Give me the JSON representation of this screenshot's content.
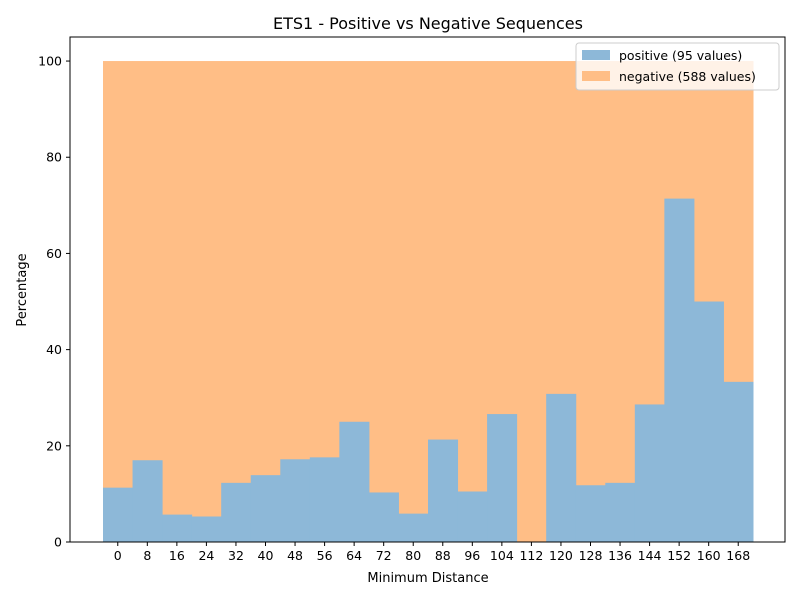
{
  "chart_data": {
    "type": "bar",
    "title": "ETS1 - Positive vs Negative Sequences",
    "xlabel": "Minimum Distance",
    "ylabel": "Percentage",
    "categories": [
      "0",
      "8",
      "16",
      "24",
      "32",
      "40",
      "48",
      "56",
      "64",
      "72",
      "80",
      "88",
      "96",
      "104",
      "112",
      "120",
      "128",
      "136",
      "144",
      "152",
      "160",
      "168"
    ],
    "series": [
      {
        "name": "positive (95 values)",
        "color": "#8db8d8",
        "values": [
          11.3,
          17.0,
          5.7,
          5.3,
          12.3,
          13.9,
          17.2,
          17.6,
          25.0,
          10.3,
          5.9,
          21.3,
          10.5,
          26.6,
          0.0,
          30.8,
          11.8,
          12.3,
          28.6,
          71.4,
          50.0,
          33.3
        ]
      },
      {
        "name": "negative (588 values)",
        "color": "#ffbe86",
        "values": [
          100,
          100,
          100,
          100,
          100,
          100,
          100,
          100,
          100,
          100,
          100,
          100,
          100,
          100,
          100,
          100,
          100,
          100,
          100,
          100,
          100,
          100
        ]
      }
    ],
    "yticks": [
      0,
      20,
      40,
      60,
      80,
      100
    ],
    "ylim": [
      0,
      105
    ],
    "grid": false,
    "legend_position": "top-right"
  }
}
